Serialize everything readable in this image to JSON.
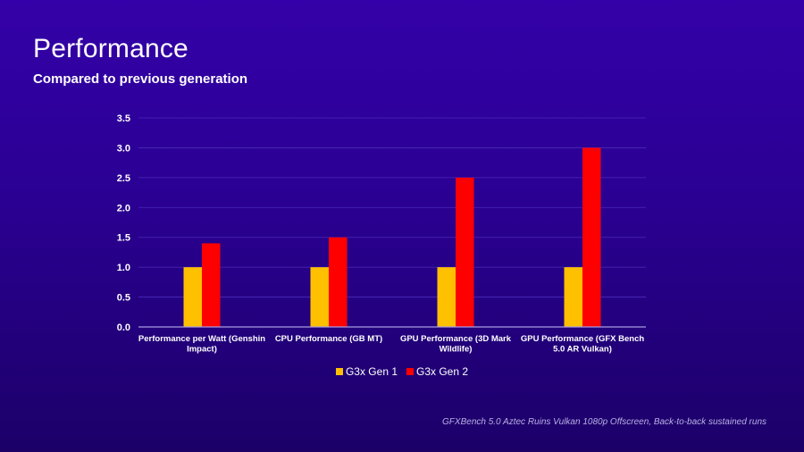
{
  "slide": {
    "title": "Performance",
    "subtitle": "Compared to previous generation",
    "footnote": "GFXBench 5.0 Aztec Ruins Vulkan 1080p Offscreen, Back-to-back sustained runs"
  },
  "colors": {
    "gen1": "#ffc000",
    "gen2": "#ff0000",
    "gridline": "#4a2bb8",
    "axis": "#a99be0"
  },
  "chart_data": {
    "type": "bar",
    "title": "Performance",
    "subtitle": "Compared to previous generation",
    "xlabel": "",
    "ylabel": "",
    "ylim": [
      0,
      3.5
    ],
    "yticks": [
      "0.0",
      "0.5",
      "1.0",
      "1.5",
      "2.0",
      "2.5",
      "3.0",
      "3.5"
    ],
    "ytick_values": [
      0,
      0.5,
      1.0,
      1.5,
      2.0,
      2.5,
      3.0,
      3.5
    ],
    "grid": true,
    "legend_position": "bottom-center",
    "categories": [
      [
        "Performance per Watt (Genshin",
        "Impact)"
      ],
      [
        "CPU Performance (GB MT)"
      ],
      [
        "GPU Performance (3D Mark",
        "Wildlife)"
      ],
      [
        "GPU Performance (GFX Bench",
        "5.0 AR Vulkan)"
      ]
    ],
    "series": [
      {
        "name": "G3x Gen 1",
        "color": "#ffc000",
        "values": [
          1.0,
          1.0,
          1.0,
          1.0
        ]
      },
      {
        "name": "G3x Gen 2",
        "color": "#ff0000",
        "values": [
          1.4,
          1.5,
          2.5,
          3.0
        ]
      }
    ],
    "note": "GFXBench 5.0 Aztec Ruins Vulkan 1080p Offscreen, Back-to-back sustained runs"
  }
}
